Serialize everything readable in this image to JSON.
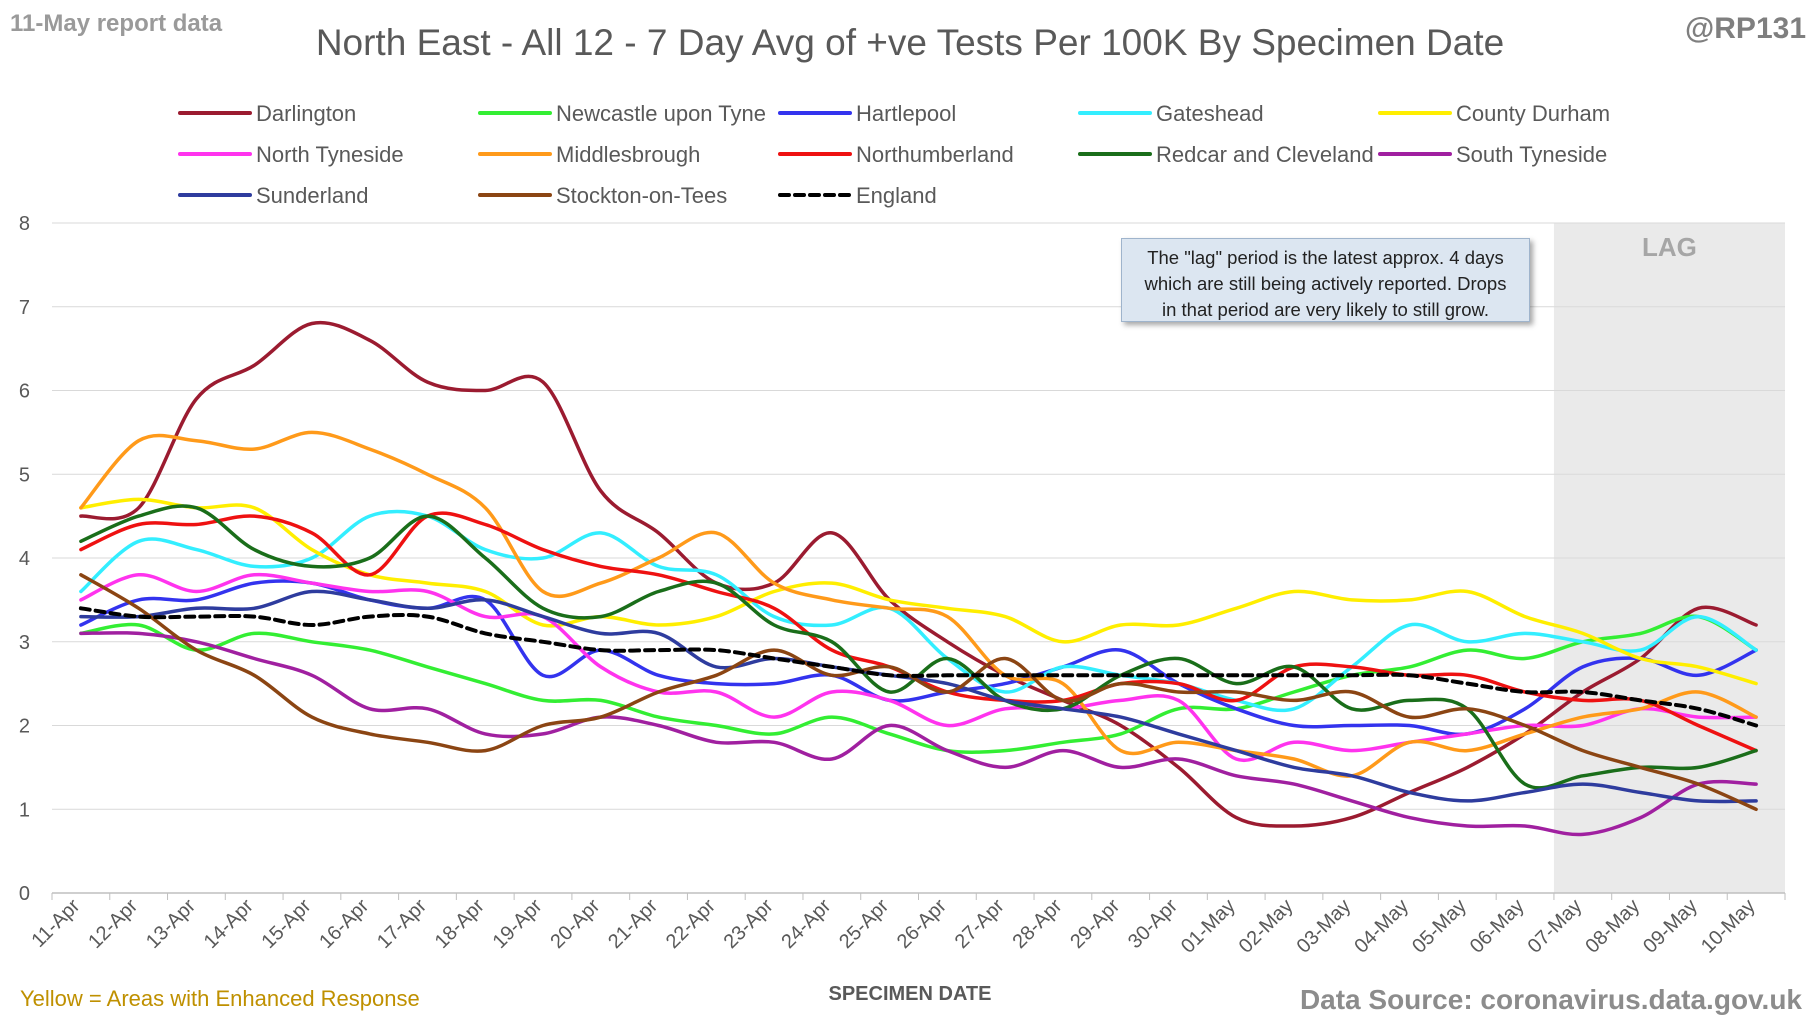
{
  "header": {
    "report_date": "11-May report data",
    "title": "North East - All 12 - 7 Day Avg of +ve Tests Per 100K By Specimen Date",
    "handle": "@RP131"
  },
  "footer": {
    "left_note": "Yellow = Areas with Enhanced Response",
    "source": "Data Source: coronavirus.data.gov.uk"
  },
  "annotation": {
    "lag_label": "LAG",
    "note_lines": [
      "The \"lag\" period is the latest approx. 4 days",
      "which are still being actively reported. Drops",
      "in that period are very likely to still grow."
    ]
  },
  "chart_data": {
    "type": "line",
    "title": "North East - All 12 - 7 Day Avg of +ve Tests Per 100K By Specimen Date",
    "xlabel": "SPECIMEN DATE",
    "ylabel": "",
    "ylim": [
      0,
      8
    ],
    "yticks": [
      0,
      1,
      2,
      3,
      4,
      5,
      6,
      7,
      8
    ],
    "grid": true,
    "legend_position": "top",
    "lag_region": {
      "from": "07-May",
      "to": "10-May",
      "label": "LAG"
    },
    "x": [
      "11-Apr",
      "12-Apr",
      "13-Apr",
      "14-Apr",
      "15-Apr",
      "16-Apr",
      "17-Apr",
      "18-Apr",
      "19-Apr",
      "20-Apr",
      "21-Apr",
      "22-Apr",
      "23-Apr",
      "24-Apr",
      "25-Apr",
      "26-Apr",
      "27-Apr",
      "28-Apr",
      "29-Apr",
      "30-Apr",
      "01-May",
      "02-May",
      "03-May",
      "04-May",
      "05-May",
      "06-May",
      "07-May",
      "08-May",
      "09-May",
      "10-May"
    ],
    "series": [
      {
        "name": "Darlington",
        "color": "#9b1b30",
        "dashed": false,
        "values": [
          4.5,
          4.6,
          5.9,
          6.3,
          6.8,
          6.6,
          6.1,
          6.0,
          6.1,
          4.8,
          4.3,
          3.7,
          3.7,
          4.3,
          3.5,
          3.0,
          2.6,
          2.3,
          2.0,
          1.5,
          0.9,
          0.8,
          0.9,
          1.2,
          1.5,
          1.9,
          2.4,
          2.8,
          3.4,
          3.2
        ]
      },
      {
        "name": "Newcastle upon Tyne",
        "color": "#33ee33",
        "dashed": false,
        "values": [
          3.1,
          3.2,
          2.9,
          3.1,
          3.0,
          2.9,
          2.7,
          2.5,
          2.3,
          2.3,
          2.1,
          2.0,
          1.9,
          2.1,
          1.9,
          1.7,
          1.7,
          1.8,
          1.9,
          2.2,
          2.2,
          2.4,
          2.6,
          2.7,
          2.9,
          2.8,
          3.0,
          3.1,
          3.3,
          2.9
        ]
      },
      {
        "name": "Hartlepool",
        "color": "#3333ee",
        "dashed": false,
        "values": [
          3.2,
          3.5,
          3.5,
          3.7,
          3.7,
          3.5,
          3.4,
          3.5,
          2.6,
          2.9,
          2.6,
          2.5,
          2.5,
          2.6,
          2.3,
          2.4,
          2.5,
          2.7,
          2.9,
          2.5,
          2.2,
          2.0,
          2.0,
          2.0,
          1.9,
          2.2,
          2.7,
          2.8,
          2.6,
          2.9
        ]
      },
      {
        "name": "Gateshead",
        "color": "#33eeff",
        "dashed": false,
        "values": [
          3.6,
          4.2,
          4.1,
          3.9,
          4.0,
          4.5,
          4.5,
          4.1,
          4.0,
          4.3,
          3.9,
          3.8,
          3.3,
          3.2,
          3.4,
          2.8,
          2.4,
          2.7,
          2.6,
          2.5,
          2.3,
          2.2,
          2.7,
          3.2,
          3.0,
          3.1,
          3.0,
          2.9,
          3.3,
          2.9
        ]
      },
      {
        "name": "County Durham",
        "color": "#ffee00",
        "dashed": false,
        "values": [
          4.6,
          4.7,
          4.6,
          4.6,
          4.1,
          3.8,
          3.7,
          3.6,
          3.2,
          3.3,
          3.2,
          3.3,
          3.6,
          3.7,
          3.5,
          3.4,
          3.3,
          3.0,
          3.2,
          3.2,
          3.4,
          3.6,
          3.5,
          3.5,
          3.6,
          3.3,
          3.1,
          2.8,
          2.7,
          2.5
        ]
      },
      {
        "name": "North Tyneside",
        "color": "#ff33ee",
        "dashed": false,
        "values": [
          3.5,
          3.8,
          3.6,
          3.8,
          3.7,
          3.6,
          3.6,
          3.3,
          3.3,
          2.7,
          2.4,
          2.4,
          2.1,
          2.4,
          2.3,
          2.0,
          2.2,
          2.2,
          2.3,
          2.3,
          1.6,
          1.8,
          1.7,
          1.8,
          1.9,
          2.0,
          2.0,
          2.2,
          2.1,
          2.1
        ]
      },
      {
        "name": "Middlesbrough",
        "color": "#ff9a1a",
        "dashed": false,
        "values": [
          4.6,
          5.4,
          5.4,
          5.3,
          5.5,
          5.3,
          5.0,
          4.6,
          3.6,
          3.7,
          4.0,
          4.3,
          3.7,
          3.5,
          3.4,
          3.3,
          2.6,
          2.5,
          1.7,
          1.8,
          1.7,
          1.6,
          1.4,
          1.8,
          1.7,
          1.9,
          2.1,
          2.2,
          2.4,
          2.1
        ]
      },
      {
        "name": "Northumberland",
        "color": "#ee1111",
        "dashed": false,
        "values": [
          4.1,
          4.4,
          4.4,
          4.5,
          4.3,
          3.8,
          4.5,
          4.4,
          4.1,
          3.9,
          3.8,
          3.6,
          3.4,
          2.9,
          2.7,
          2.4,
          2.3,
          2.3,
          2.5,
          2.5,
          2.3,
          2.7,
          2.7,
          2.6,
          2.6,
          2.4,
          2.3,
          2.3,
          2.0,
          1.7
        ]
      },
      {
        "name": "Redcar and Cleveland",
        "color": "#1a6e1a",
        "dashed": false,
        "values": [
          4.2,
          4.5,
          4.6,
          4.1,
          3.9,
          4.0,
          4.5,
          4.0,
          3.4,
          3.3,
          3.6,
          3.7,
          3.2,
          3.0,
          2.4,
          2.8,
          2.3,
          2.2,
          2.6,
          2.8,
          2.5,
          2.7,
          2.2,
          2.3,
          2.2,
          1.3,
          1.4,
          1.5,
          1.5,
          1.7
        ]
      },
      {
        "name": "South Tyneside",
        "color": "#a020a0",
        "dashed": false,
        "values": [
          3.1,
          3.1,
          3.0,
          2.8,
          2.6,
          2.2,
          2.2,
          1.9,
          1.9,
          2.1,
          2.0,
          1.8,
          1.8,
          1.6,
          2.0,
          1.7,
          1.5,
          1.7,
          1.5,
          1.6,
          1.4,
          1.3,
          1.1,
          0.9,
          0.8,
          0.8,
          0.7,
          0.9,
          1.3,
          1.3
        ]
      },
      {
        "name": "Sunderland",
        "color": "#2e3c9e",
        "dashed": false,
        "values": [
          3.3,
          3.3,
          3.4,
          3.4,
          3.6,
          3.5,
          3.4,
          3.5,
          3.3,
          3.1,
          3.1,
          2.7,
          2.8,
          2.7,
          2.6,
          2.5,
          2.3,
          2.2,
          2.1,
          1.9,
          1.7,
          1.5,
          1.4,
          1.2,
          1.1,
          1.2,
          1.3,
          1.2,
          1.1,
          1.1
        ]
      },
      {
        "name": "Stockton-on-Tees",
        "color": "#8b4513",
        "dashed": false,
        "values": [
          3.8,
          3.4,
          2.9,
          2.6,
          2.1,
          1.9,
          1.8,
          1.7,
          2.0,
          2.1,
          2.4,
          2.6,
          2.9,
          2.6,
          2.7,
          2.4,
          2.8,
          2.3,
          2.5,
          2.4,
          2.4,
          2.3,
          2.4,
          2.1,
          2.2,
          2.0,
          1.7,
          1.5,
          1.3,
          1.0
        ]
      },
      {
        "name": "England",
        "color": "#000000",
        "dashed": true,
        "values": [
          3.4,
          3.3,
          3.3,
          3.3,
          3.2,
          3.3,
          3.3,
          3.1,
          3.0,
          2.9,
          2.9,
          2.9,
          2.8,
          2.7,
          2.6,
          2.6,
          2.6,
          2.6,
          2.6,
          2.6,
          2.6,
          2.6,
          2.6,
          2.6,
          2.5,
          2.4,
          2.4,
          2.3,
          2.2,
          2.0
        ]
      }
    ]
  }
}
